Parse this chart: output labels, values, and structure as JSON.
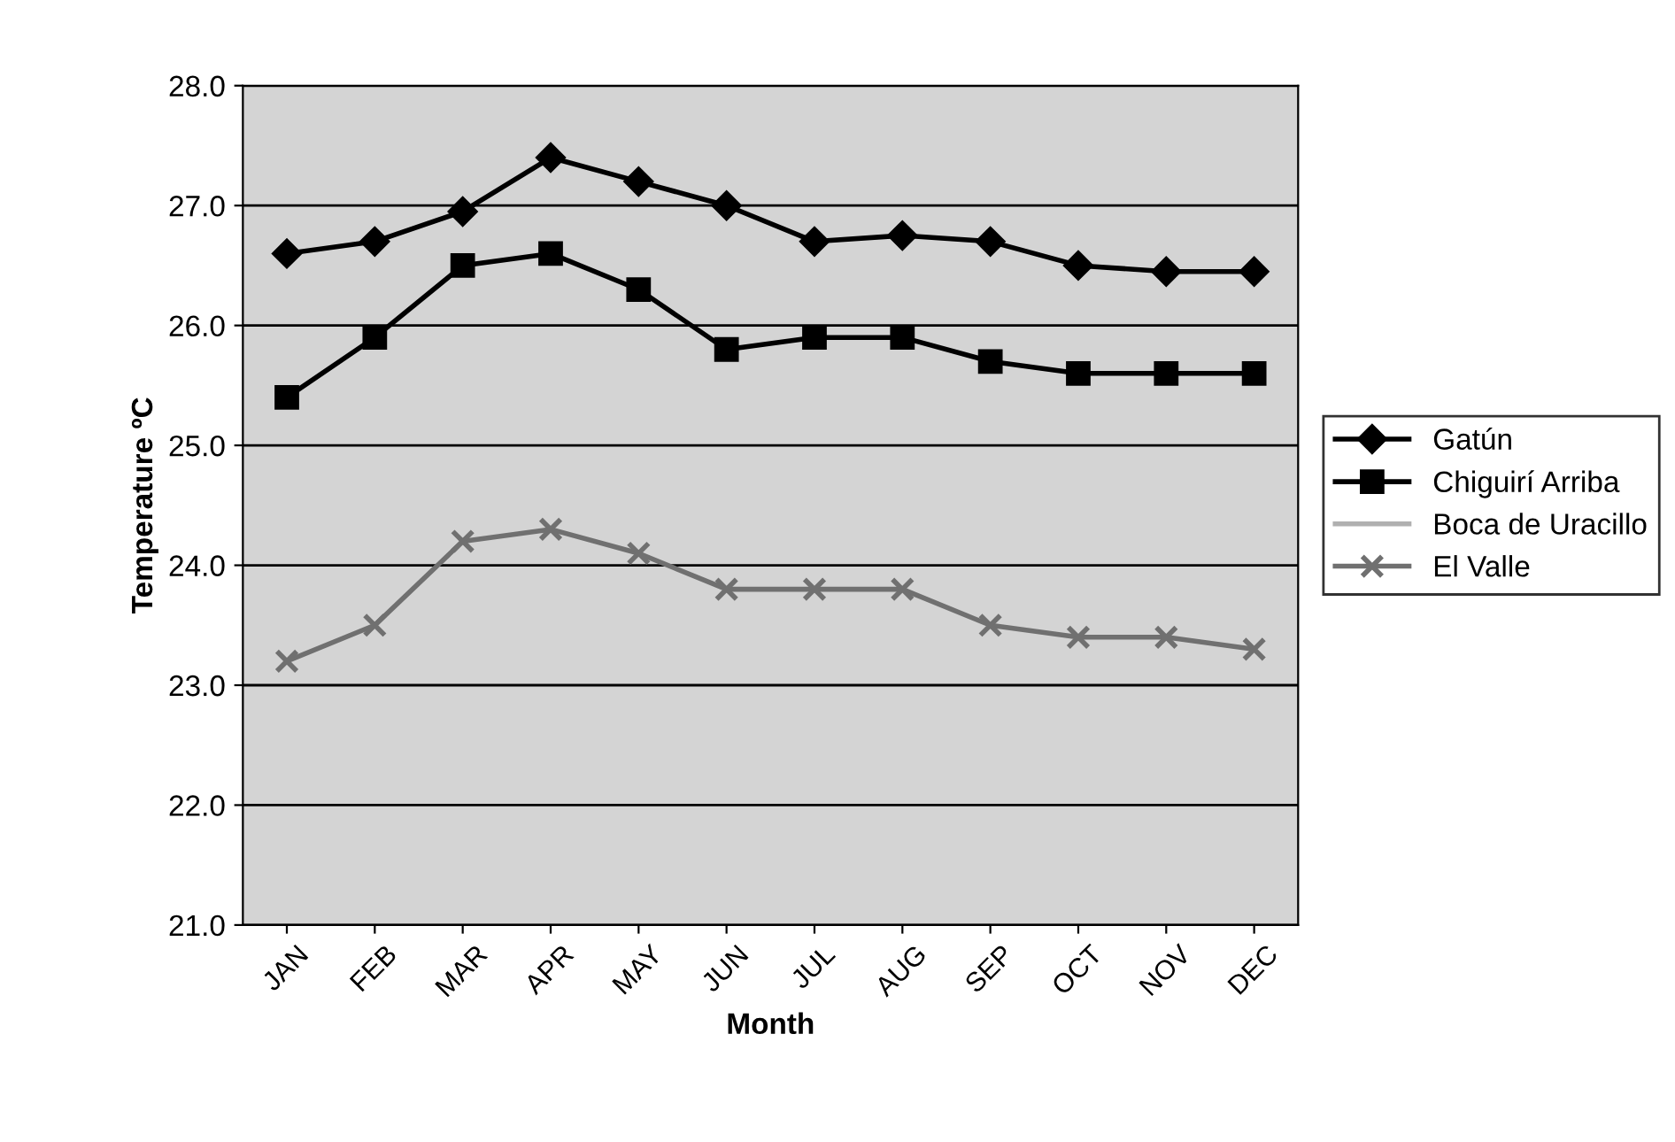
{
  "chart_data": {
    "type": "line",
    "xlabel": "Month",
    "ylabel": "Temperature ºC",
    "categories": [
      "JAN",
      "FEB",
      "MAR",
      "APR",
      "MAY",
      "JUN",
      "JUL",
      "AUG",
      "SEP",
      "OCT",
      "NOV",
      "DEC"
    ],
    "series": [
      {
        "name": "Gatún",
        "color": "#000000",
        "marker": "diamond",
        "values": [
          26.6,
          26.7,
          26.95,
          27.4,
          27.2,
          27.0,
          26.7,
          26.75,
          26.7,
          26.5,
          26.45,
          26.45
        ]
      },
      {
        "name": "Chiguirí Arriba",
        "color": "#000000",
        "marker": "square",
        "values": [
          25.4,
          25.9,
          26.5,
          26.6,
          26.3,
          25.8,
          25.9,
          25.9,
          25.7,
          25.6,
          25.6,
          25.6
        ]
      },
      {
        "name": "Boca de Uracillo",
        "color": "#b0b0b0",
        "marker": "none",
        "values": [
          null,
          null,
          null,
          null,
          null,
          null,
          null,
          null,
          null,
          null,
          null,
          null
        ]
      },
      {
        "name": "El Valle",
        "color": "#707070",
        "marker": "cross",
        "values": [
          23.2,
          23.5,
          24.2,
          24.3,
          24.1,
          23.8,
          23.8,
          23.8,
          23.5,
          23.4,
          23.4,
          23.3
        ]
      }
    ],
    "ylim": [
      21,
      28
    ],
    "yticks": [
      {
        "value": 21,
        "label": "21.0"
      },
      {
        "value": 22,
        "label": "22.0"
      },
      {
        "value": 23,
        "label": "23.0"
      },
      {
        "value": 24,
        "label": "24.0"
      },
      {
        "value": 25,
        "label": "25.0"
      },
      {
        "value": 26,
        "label": "26.0"
      },
      {
        "value": 27,
        "label": "27.0"
      },
      {
        "value": 28,
        "label": "28.0"
      }
    ],
    "grid": "y",
    "legend": "right"
  }
}
